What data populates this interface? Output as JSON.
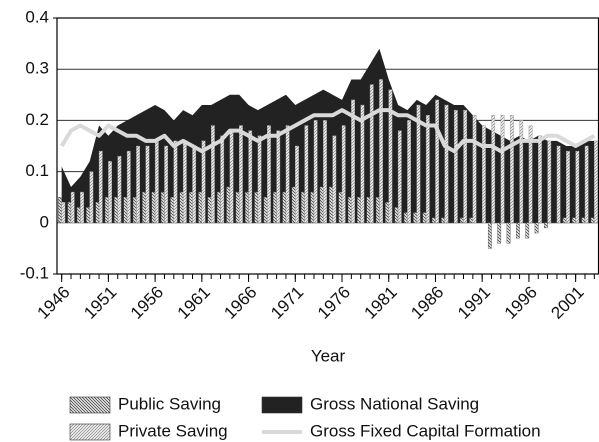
{
  "chart_data": {
    "type": "bar-area-line",
    "x_label": "Year",
    "x": [
      1946,
      1947,
      1948,
      1949,
      1950,
      1951,
      1952,
      1953,
      1954,
      1955,
      1956,
      1957,
      1958,
      1959,
      1960,
      1961,
      1962,
      1963,
      1964,
      1965,
      1966,
      1967,
      1968,
      1969,
      1970,
      1971,
      1972,
      1973,
      1974,
      1975,
      1976,
      1977,
      1978,
      1979,
      1980,
      1981,
      1982,
      1983,
      1984,
      1985,
      1986,
      1987,
      1988,
      1989,
      1990,
      1991,
      1992,
      1993,
      1994,
      1995,
      1996,
      1997,
      1998,
      1999,
      2000,
      2001,
      2002,
      2003
    ],
    "xlim": [
      1945.5,
      2003.5
    ],
    "xticks": [
      1946,
      1951,
      1956,
      1961,
      1966,
      1971,
      1976,
      1981,
      1986,
      1991,
      1996,
      2001
    ],
    "ylim": [
      -0.1,
      0.4
    ],
    "yticks": [
      -0.1,
      0,
      0.1,
      0.2,
      0.3,
      0.4
    ],
    "grid": true,
    "series": [
      {
        "name": "Public Saving",
        "color": "#555555",
        "style": "hatch-back",
        "values": [
          0.05,
          0.04,
          0.03,
          0.03,
          0.04,
          0.05,
          0.05,
          0.05,
          0.05,
          0.06,
          0.06,
          0.06,
          0.05,
          0.06,
          0.06,
          0.06,
          0.05,
          0.06,
          0.07,
          0.06,
          0.06,
          0.06,
          0.05,
          0.06,
          0.06,
          0.07,
          0.06,
          0.06,
          0.07,
          0.07,
          0.06,
          0.05,
          0.05,
          0.05,
          0.05,
          0.04,
          0.03,
          0.02,
          0.02,
          0.02,
          0.01,
          0.01,
          0.0,
          0.01,
          0.01,
          0.0,
          -0.05,
          -0.04,
          -0.04,
          -0.03,
          -0.03,
          -0.02,
          -0.01,
          0.0,
          0.01,
          0.01,
          0.01,
          0.01
        ]
      },
      {
        "name": "Private Saving",
        "color": "#999999",
        "style": "hatch-forward",
        "values": [
          0.04,
          0.06,
          0.06,
          0.1,
          0.14,
          0.12,
          0.13,
          0.14,
          0.15,
          0.15,
          0.16,
          0.15,
          0.16,
          0.16,
          0.15,
          0.16,
          0.19,
          0.17,
          0.18,
          0.19,
          0.18,
          0.17,
          0.19,
          0.18,
          0.19,
          0.15,
          0.19,
          0.2,
          0.2,
          0.17,
          0.19,
          0.24,
          0.23,
          0.27,
          0.28,
          0.26,
          0.18,
          0.2,
          0.23,
          0.21,
          0.24,
          0.23,
          0.22,
          0.22,
          0.21,
          0.19,
          0.21,
          0.21,
          0.21,
          0.2,
          0.19,
          0.17,
          0.16,
          0.15,
          0.14,
          0.14,
          0.15,
          0.16
        ]
      },
      {
        "name": "Gross National Saving",
        "color": "#222222",
        "style": "area",
        "values": [
          0.11,
          0.07,
          0.09,
          0.12,
          0.19,
          0.17,
          0.19,
          0.2,
          0.21,
          0.22,
          0.23,
          0.22,
          0.2,
          0.22,
          0.21,
          0.23,
          0.23,
          0.24,
          0.25,
          0.25,
          0.23,
          0.22,
          0.23,
          0.24,
          0.25,
          0.23,
          0.24,
          0.25,
          0.26,
          0.25,
          0.24,
          0.28,
          0.28,
          0.31,
          0.34,
          0.28,
          0.23,
          0.22,
          0.24,
          0.23,
          0.25,
          0.24,
          0.23,
          0.23,
          0.21,
          0.19,
          0.18,
          0.17,
          0.16,
          0.17,
          0.16,
          0.17,
          0.16,
          0.16,
          0.15,
          0.15,
          0.16,
          0.16
        ]
      },
      {
        "name": "Gross Fixed Capital Formation",
        "color": "#d9d9d9",
        "style": "line",
        "values": [
          0.15,
          0.18,
          0.19,
          0.18,
          0.17,
          0.19,
          0.18,
          0.17,
          0.17,
          0.16,
          0.16,
          0.17,
          0.15,
          0.16,
          0.15,
          0.14,
          0.15,
          0.16,
          0.18,
          0.18,
          0.17,
          0.16,
          0.17,
          0.17,
          0.18,
          0.19,
          0.2,
          0.21,
          0.21,
          0.21,
          0.22,
          0.21,
          0.2,
          0.21,
          0.22,
          0.22,
          0.21,
          0.21,
          0.2,
          0.19,
          0.19,
          0.15,
          0.14,
          0.16,
          0.16,
          0.15,
          0.15,
          0.14,
          0.15,
          0.16,
          0.16,
          0.16,
          0.17,
          0.17,
          0.16,
          0.15,
          0.16,
          0.17
        ]
      }
    ]
  }
}
